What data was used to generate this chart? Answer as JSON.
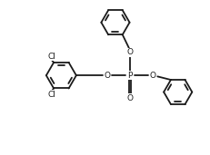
{
  "bg_color": "#ffffff",
  "line_color": "#1a1a1a",
  "line_width": 1.3,
  "text_color": "#1a1a1a",
  "font_size": 6.5,
  "figsize": [
    2.31,
    1.71
  ],
  "dpi": 100,
  "xlim": [
    0,
    10
  ],
  "ylim": [
    0,
    7.4
  ]
}
